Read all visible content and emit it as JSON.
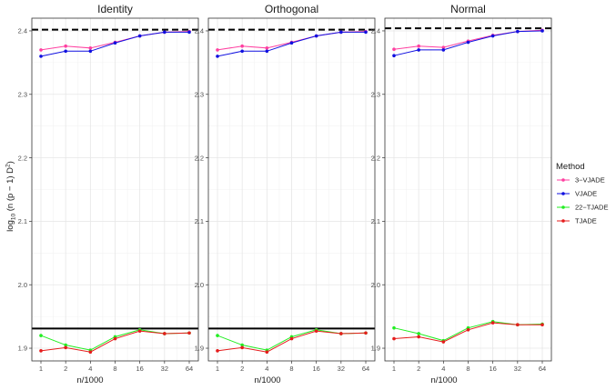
{
  "chart_data": {
    "type": "line",
    "panels": [
      "Identity",
      "Orthogonal",
      "Normal"
    ],
    "x": [
      "1",
      "2",
      "4",
      "8",
      "16",
      "32",
      "64"
    ],
    "xlabel": "n/1000",
    "ylabel_parts": [
      "log",
      "10",
      " (n (p − 1) D",
      "2",
      ")"
    ],
    "ylim": [
      1.88,
      2.42
    ],
    "y_ticks": [
      "1.9",
      "2.0",
      "2.1",
      "2.2",
      "2.3",
      "2.4"
    ],
    "y_tick_values": [
      1.9,
      2.0,
      2.1,
      2.2,
      2.3,
      2.4
    ],
    "reference_lines": [
      {
        "style": "dashed",
        "values": [
          2.402,
          2.402,
          2.404
        ]
      },
      {
        "style": "solid",
        "values": [
          1.931,
          1.931,
          null
        ]
      }
    ],
    "legend": {
      "title": "Method",
      "placement": "right"
    },
    "series": [
      {
        "name": "3−VJADE",
        "color": "#ff3fa0",
        "values": [
          [
            2.37,
            2.376,
            2.373,
            2.382,
            2.392,
            2.398,
            2.399
          ],
          [
            2.37,
            2.376,
            2.373,
            2.382,
            2.392,
            2.398,
            2.399
          ],
          [
            2.371,
            2.376,
            2.374,
            2.384,
            2.393,
            2.399,
            2.401
          ]
        ]
      },
      {
        "name": "VJADE",
        "color": "#1010e0",
        "values": [
          [
            2.36,
            2.368,
            2.368,
            2.381,
            2.392,
            2.398,
            2.398
          ],
          [
            2.36,
            2.368,
            2.368,
            2.381,
            2.392,
            2.398,
            2.398
          ],
          [
            2.361,
            2.37,
            2.37,
            2.382,
            2.392,
            2.399,
            2.4
          ]
        ]
      },
      {
        "name": "22−TJADE",
        "color": "#22ee22",
        "values": [
          [
            1.92,
            1.905,
            1.897,
            1.918,
            1.929,
            1.923,
            1.924
          ],
          [
            1.92,
            1.905,
            1.897,
            1.918,
            1.929,
            1.923,
            1.924
          ],
          [
            1.932,
            1.923,
            1.912,
            1.932,
            1.942,
            1.937,
            1.938
          ]
        ]
      },
      {
        "name": "TJADE",
        "color": "#e51c1c",
        "values": [
          [
            1.896,
            1.901,
            1.894,
            1.915,
            1.927,
            1.923,
            1.924
          ],
          [
            1.896,
            1.901,
            1.894,
            1.915,
            1.927,
            1.923,
            1.924
          ],
          [
            1.915,
            1.918,
            1.91,
            1.929,
            1.94,
            1.937,
            1.937
          ]
        ]
      }
    ]
  }
}
